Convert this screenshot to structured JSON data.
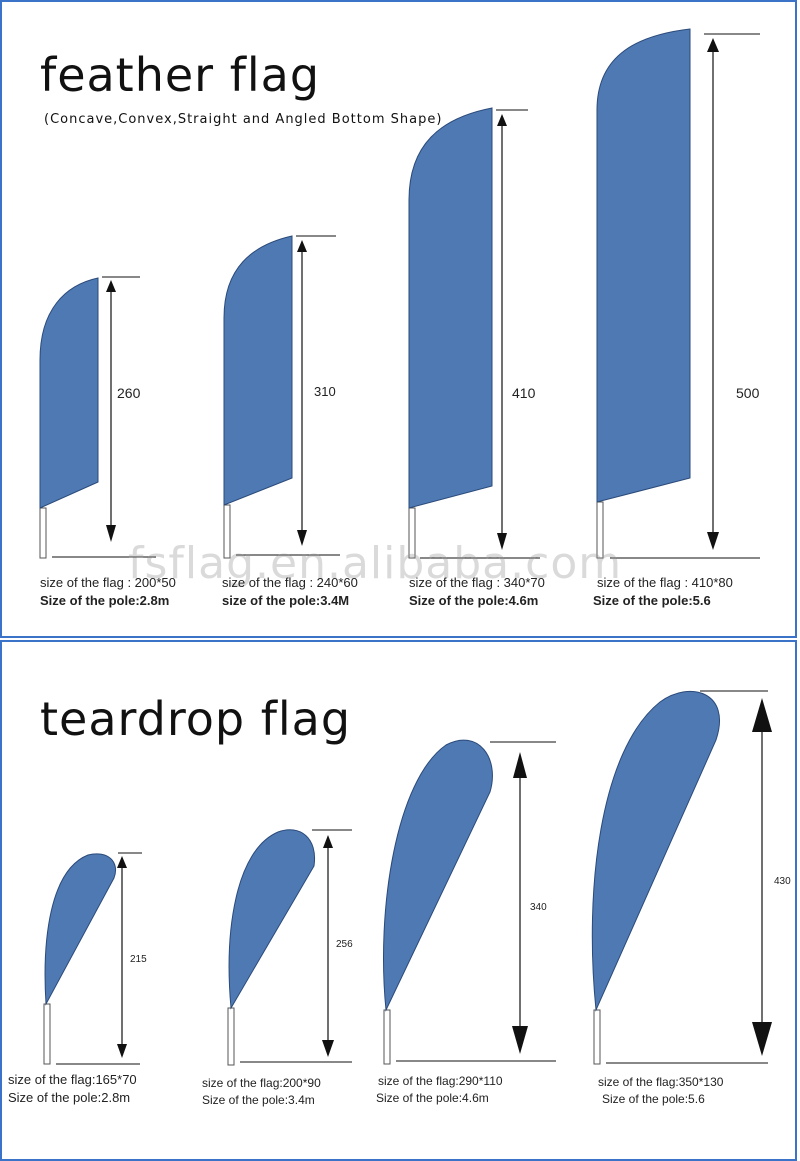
{
  "feather": {
    "title": "feather flag",
    "subtitle": "(Concave,Convex,Straight and Angled Bottom Shape)",
    "items": [
      {
        "height": "260",
        "flag_size": "size of the flag : 200*50",
        "pole": "Size of the pole:2.8m"
      },
      {
        "height": "310",
        "flag_size": "size of the flag : 240*60",
        "pole": "size of the pole:3.4M"
      },
      {
        "height": "410",
        "flag_size": "size of the flag : 340*70",
        "pole": "Size of the pole:4.6m"
      },
      {
        "height": "500",
        "flag_size": "size of the flag : 410*80",
        "pole": "Size of the pole:5.6"
      }
    ]
  },
  "teardrop": {
    "title": "teardrop flag",
    "items": [
      {
        "height": "215",
        "flag_size": "size of the flag:165*70",
        "pole": "Size of the pole:2.8m"
      },
      {
        "height": "256",
        "flag_size": "size of the flag:200*90",
        "pole": "Size of the pole:3.4m"
      },
      {
        "height": "340",
        "flag_size": "size of the flag:290*110",
        "pole": "Size of the pole:4.6m"
      },
      {
        "height": "430",
        "flag_size": "size of the flag:350*130",
        "pole": "Size of the pole:5.6"
      }
    ]
  },
  "watermark": "fsflag.en.alibaba.com",
  "colors": {
    "flag": "#4f79b3",
    "border": "#3b73c8"
  }
}
